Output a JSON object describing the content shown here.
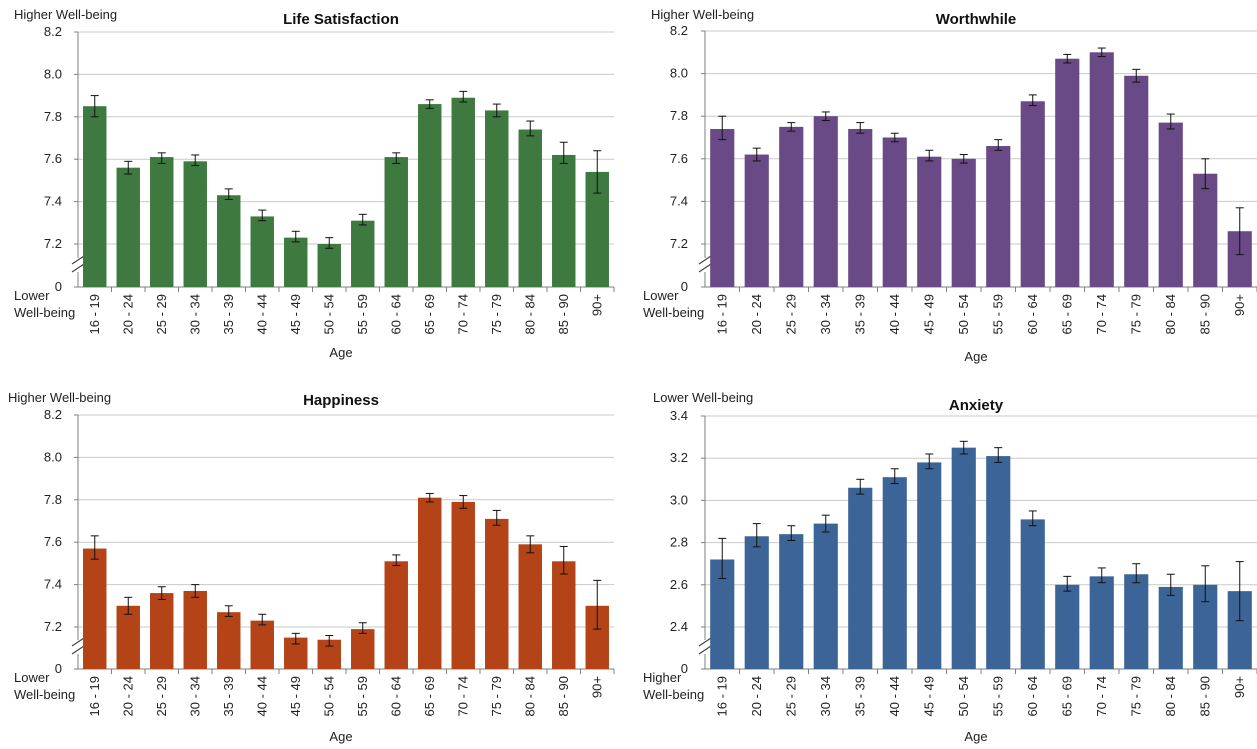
{
  "age_groups": [
    "16 - 19",
    "20 - 24",
    "25 - 29",
    "30 - 34",
    "35 - 39",
    "40 - 44",
    "45 - 49",
    "50 - 54",
    "55 - 59",
    "60 - 64",
    "65 - 69",
    "70 - 74",
    "75 - 79",
    "80 - 84",
    "85 - 90",
    "90+"
  ],
  "chart_data": [
    {
      "type": "bar",
      "title": "Life Satisfaction",
      "xlabel": "Age",
      "ylabel": "",
      "top_note": "Higher Well-being",
      "bottom_note": [
        "Lower",
        "Well-being"
      ],
      "ylim": [
        7.1,
        8.2
      ],
      "yticks": [
        "8.2",
        "8.0",
        "7.8",
        "7.6",
        "7.4",
        "7.2"
      ],
      "ytick_values": [
        8.2,
        8.0,
        7.8,
        7.6,
        7.4,
        7.2
      ],
      "axis_break_label": "0",
      "color": "#3e7a3f",
      "categories": [
        "16 - 19",
        "20 - 24",
        "25 - 29",
        "30 - 34",
        "35 - 39",
        "40 - 44",
        "45 - 49",
        "50 - 54",
        "55 - 59",
        "60 - 64",
        "65 - 69",
        "70 - 74",
        "75 - 79",
        "80 - 84",
        "85 - 90",
        "90+"
      ],
      "values": [
        7.85,
        7.56,
        7.61,
        7.59,
        7.43,
        7.33,
        7.23,
        7.2,
        7.31,
        7.61,
        7.86,
        7.89,
        7.83,
        7.74,
        7.62,
        7.54
      ],
      "error_low": [
        7.8,
        7.53,
        7.58,
        7.57,
        7.41,
        7.31,
        7.21,
        7.18,
        7.29,
        7.58,
        7.84,
        7.87,
        7.8,
        7.71,
        7.58,
        7.44
      ],
      "error_high": [
        7.9,
        7.59,
        7.63,
        7.62,
        7.46,
        7.36,
        7.26,
        7.23,
        7.34,
        7.63,
        7.88,
        7.92,
        7.86,
        7.78,
        7.68,
        7.64
      ]
    },
    {
      "type": "bar",
      "title": "Worthwhile",
      "xlabel": "Age",
      "ylabel": "",
      "top_note": "Higher Well-being",
      "bottom_note": [
        "Lower",
        "Well-being"
      ],
      "ylim": [
        7.1,
        8.2
      ],
      "yticks": [
        "8.2",
        "8.0",
        "7.8",
        "7.6",
        "7.4",
        "7.2"
      ],
      "ytick_values": [
        8.2,
        8.0,
        7.8,
        7.6,
        7.4,
        7.2
      ],
      "axis_break_label": "0",
      "color": "#6a4a86",
      "categories": [
        "16 - 19",
        "20 - 24",
        "25 - 29",
        "30 - 34",
        "35 - 39",
        "40 - 44",
        "45 - 49",
        "50 - 54",
        "55 - 59",
        "60 - 64",
        "65 - 69",
        "70 - 74",
        "75 - 79",
        "80 - 84",
        "85 - 90",
        "90+"
      ],
      "values": [
        7.74,
        7.62,
        7.75,
        7.8,
        7.74,
        7.7,
        7.61,
        7.6,
        7.66,
        7.87,
        8.07,
        8.1,
        7.99,
        7.77,
        7.53,
        7.26
      ],
      "error_low": [
        7.69,
        7.59,
        7.73,
        7.78,
        7.72,
        7.68,
        7.59,
        7.58,
        7.64,
        7.85,
        8.05,
        8.08,
        7.96,
        7.74,
        7.46,
        7.15
      ],
      "error_high": [
        7.8,
        7.65,
        7.77,
        7.82,
        7.77,
        7.72,
        7.64,
        7.62,
        7.69,
        7.9,
        8.09,
        8.12,
        8.02,
        7.81,
        7.6,
        7.37
      ]
    },
    {
      "type": "bar",
      "title": "Happiness",
      "xlabel": "Age",
      "ylabel": "",
      "top_note": "Higher Well-being",
      "bottom_note": [
        "Lower",
        "Well-being"
      ],
      "ylim": [
        7.1,
        8.2
      ],
      "yticks": [
        "8.2",
        "8.0",
        "7.8",
        "7.6",
        "7.4",
        "7.2"
      ],
      "ytick_values": [
        8.2,
        8.0,
        7.8,
        7.6,
        7.4,
        7.2
      ],
      "axis_break_label": "0",
      "color": "#b44418",
      "categories": [
        "16 - 19",
        "20 - 24",
        "25 - 29",
        "30 - 34",
        "35 - 39",
        "40 - 44",
        "45 - 49",
        "50 - 54",
        "55 - 59",
        "60 - 64",
        "65 - 69",
        "70 - 74",
        "75 - 79",
        "80 - 84",
        "85 - 90",
        "90+"
      ],
      "values": [
        7.57,
        7.3,
        7.36,
        7.37,
        7.27,
        7.23,
        7.15,
        7.14,
        7.19,
        7.51,
        7.81,
        7.79,
        7.71,
        7.59,
        7.51,
        7.3
      ],
      "error_low": [
        7.52,
        7.26,
        7.33,
        7.34,
        7.25,
        7.21,
        7.12,
        7.11,
        7.17,
        7.49,
        7.79,
        7.76,
        7.68,
        7.55,
        7.45,
        7.19
      ],
      "error_high": [
        7.63,
        7.34,
        7.39,
        7.4,
        7.3,
        7.26,
        7.17,
        7.16,
        7.22,
        7.54,
        7.83,
        7.82,
        7.75,
        7.63,
        7.58,
        7.42
      ]
    },
    {
      "type": "bar",
      "title": "Anxiety",
      "xlabel": "Age",
      "ylabel": "",
      "top_note": "Lower Well-being",
      "bottom_note": [
        "Higher",
        "Well-being"
      ],
      "ylim": [
        2.3,
        3.4
      ],
      "yticks": [
        "3.4",
        "3.2",
        "3.0",
        "2.8",
        "2.6",
        "2.4"
      ],
      "ytick_values": [
        3.4,
        3.2,
        3.0,
        2.8,
        2.6,
        2.4
      ],
      "axis_break_label": "0",
      "color": "#3d6496",
      "categories": [
        "16 - 19",
        "20 - 24",
        "25 - 29",
        "30 - 34",
        "35 - 39",
        "40 - 44",
        "45 - 49",
        "50 - 54",
        "55 - 59",
        "60 - 64",
        "65 - 69",
        "70 - 74",
        "75 - 79",
        "80 - 84",
        "85 - 90",
        "90+"
      ],
      "values": [
        2.72,
        2.83,
        2.84,
        2.89,
        3.06,
        3.11,
        3.18,
        3.25,
        3.21,
        2.91,
        2.6,
        2.64,
        2.65,
        2.59,
        2.6,
        2.57
      ],
      "error_low": [
        2.63,
        2.78,
        2.81,
        2.85,
        3.03,
        3.08,
        3.15,
        3.22,
        3.18,
        2.88,
        2.57,
        2.61,
        2.61,
        2.55,
        2.52,
        2.43
      ],
      "error_high": [
        2.82,
        2.89,
        2.88,
        2.93,
        3.1,
        3.15,
        3.22,
        3.28,
        3.25,
        2.95,
        2.64,
        2.68,
        2.7,
        2.65,
        2.69,
        2.71
      ]
    }
  ]
}
